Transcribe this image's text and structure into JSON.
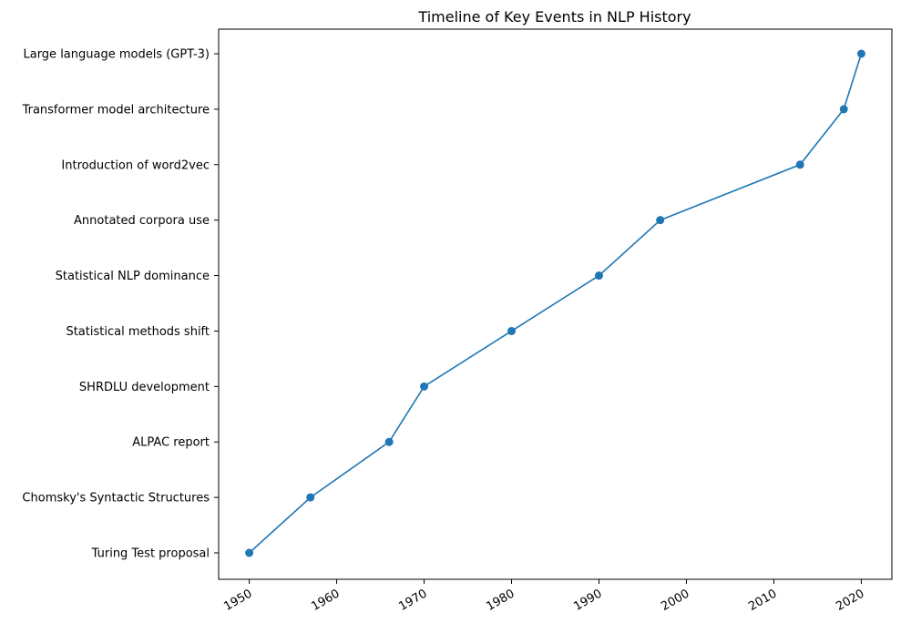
{
  "chart_data": {
    "type": "line",
    "title": "Timeline of Key Events in NLP History",
    "xlabel": "",
    "ylabel": "",
    "x_ticks": [
      1950,
      1960,
      1970,
      1980,
      1990,
      2000,
      2010,
      2020
    ],
    "xlim": [
      1946.5,
      2023.5
    ],
    "categories": [
      "Turing Test proposal",
      "Chomsky's Syntactic Structures",
      "ALPAC report",
      "SHRDLU development",
      "Statistical methods shift",
      "Statistical NLP dominance",
      "Annotated corpora use",
      "Introduction of word2vec",
      "Transformer model architecture",
      "Large language models (GPT-3)"
    ],
    "x": [
      1950,
      1957,
      1966,
      1970,
      1980,
      1990,
      1997,
      2013,
      2018,
      2020
    ],
    "grid": false,
    "marker": "circle",
    "colors": {
      "series": "#1f77b4",
      "axes": "#000000"
    }
  }
}
